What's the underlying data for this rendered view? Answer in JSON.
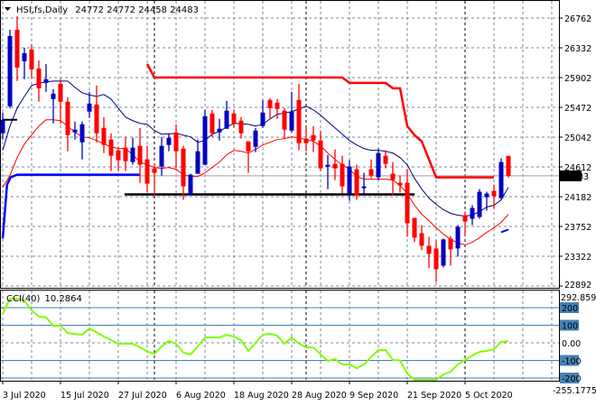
{
  "header": {
    "symbol": "HSI,fs,Daily",
    "ohlc": "24772 24772 24458 24483"
  },
  "colors": {
    "bull_candle": "#0000c0",
    "bear_candle": "#ff0000",
    "ma_fast": "#000080",
    "ma_slow": "#ff0000",
    "stop_upper": "#ff0000",
    "stop_lower": "#0000ff",
    "support_line": "#000000",
    "cci_line": "#7fff00",
    "cci_level_box": "#4682b4",
    "grid": "#778899"
  },
  "chart_data": [
    {
      "type": "candlestick",
      "title": "HSI,fs,Daily",
      "current_price": 24483,
      "current_price_label": "24483",
      "yticks": [
        26762,
        26332,
        25902,
        25472,
        25042,
        24612,
        24182,
        23752,
        23322,
        22892
      ],
      "ytick_labels": [
        "26762",
        "26332",
        "25902",
        "25472",
        "25042",
        "24612",
        "24182",
        "23752",
        "23322",
        "22892"
      ],
      "ylim": [
        22892,
        26762
      ],
      "grid": true,
      "xtick_labels": [
        {
          "bar": 0,
          "label": "3 Jul 2020"
        },
        {
          "bar": 8,
          "label": "15 Jul 2020"
        },
        {
          "bar": 16,
          "label": "27 Jul 2020"
        },
        {
          "bar": 24,
          "label": "6 Aug 2020"
        },
        {
          "bar": 32,
          "label": "18 Aug 2020"
        },
        {
          "bar": 40,
          "label": "28 Aug 2020"
        },
        {
          "bar": 48,
          "label": "9 Sep 2020"
        },
        {
          "bar": 56,
          "label": "21 Sep 2020"
        },
        {
          "bar": 64,
          "label": "5 Oct 2020"
        }
      ],
      "period_separators_bars": [
        21,
        42,
        64
      ],
      "ohlc": [
        [
          25098,
          25397,
          25007,
          25293
        ],
        [
          25488,
          26593,
          25462,
          26502
        ],
        [
          26593,
          26788,
          25852,
          26047
        ],
        [
          26138,
          26333,
          25878,
          26255
        ],
        [
          26307,
          26385,
          25891,
          26021
        ],
        [
          26034,
          26151,
          25553,
          25748
        ],
        [
          25826,
          26099,
          25696,
          25878
        ],
        [
          25592,
          25735,
          25241,
          25670
        ],
        [
          25813,
          25878,
          25241,
          25553
        ],
        [
          25553,
          25618,
          24838,
          25072
        ],
        [
          25111,
          25267,
          25007,
          25150
        ],
        [
          24968,
          25267,
          24721,
          25228
        ],
        [
          25410,
          25696,
          25319,
          25527
        ],
        [
          25514,
          25787,
          24968,
          25098
        ],
        [
          25176,
          25332,
          24812,
          24929
        ],
        [
          25007,
          25098,
          24552,
          24773
        ],
        [
          24851,
          24903,
          24552,
          24708
        ],
        [
          24890,
          25046,
          24552,
          24695
        ],
        [
          24682,
          25033,
          24643,
          24890
        ],
        [
          24916,
          25176,
          24383,
          24643
        ],
        [
          24721,
          24916,
          24253,
          24370
        ],
        [
          24591,
          24656,
          24188,
          24526
        ],
        [
          24617,
          25046,
          24487,
          24916
        ],
        [
          24929,
          25098,
          24838,
          25033
        ],
        [
          25111,
          25228,
          24591,
          24838
        ],
        [
          24877,
          24916,
          24136,
          24331
        ],
        [
          24214,
          24513,
          24201,
          24500
        ],
        [
          24513,
          25007,
          24513,
          24838
        ],
        [
          24643,
          25436,
          24643,
          25345
        ],
        [
          25384,
          25436,
          25046,
          25098
        ],
        [
          25111,
          25306,
          24994,
          25163
        ],
        [
          25163,
          25566,
          25163,
          25423
        ],
        [
          25384,
          25436,
          25176,
          25241
        ],
        [
          25280,
          25332,
          25020,
          25098
        ],
        [
          24981,
          24981,
          24526,
          24838
        ],
        [
          24903,
          25176,
          24825,
          25137
        ],
        [
          25202,
          25579,
          25176,
          25397
        ],
        [
          25579,
          25605,
          25306,
          25462
        ],
        [
          25540,
          25592,
          25306,
          25449
        ],
        [
          25423,
          25462,
          25020,
          25150
        ],
        [
          25137,
          25696,
          25111,
          25410
        ],
        [
          25579,
          25813,
          24851,
          24955
        ],
        [
          25020,
          25202,
          24838,
          24955
        ],
        [
          25072,
          25202,
          24825,
          24994
        ],
        [
          24994,
          25137,
          24552,
          24591
        ],
        [
          24617,
          24786,
          24292,
          24643
        ],
        [
          24656,
          24864,
          24422,
          24591
        ],
        [
          24656,
          24773,
          24227,
          24331
        ],
        [
          24227,
          24708,
          24123,
          24617
        ],
        [
          24578,
          24643,
          24136,
          24201
        ],
        [
          24305,
          24526,
          24214,
          24331
        ],
        [
          24578,
          24721,
          24448,
          24487
        ],
        [
          24461,
          24877,
          24422,
          24812
        ],
        [
          24773,
          24851,
          24591,
          24656
        ],
        [
          24513,
          24682,
          24201,
          24422
        ],
        [
          24383,
          24487,
          24240,
          24344
        ],
        [
          24383,
          24578,
          23603,
          23798
        ],
        [
          23876,
          23876,
          23525,
          23590
        ],
        [
          23655,
          23772,
          23408,
          23473
        ],
        [
          23473,
          23603,
          23148,
          23356
        ],
        [
          23434,
          23551,
          22953,
          23135
        ],
        [
          23187,
          23577,
          23161,
          23564
        ],
        [
          23577,
          23616,
          23187,
          23421
        ],
        [
          23434,
          23772,
          23317,
          23746
        ],
        [
          23915,
          23967,
          23616,
          23824
        ],
        [
          23863,
          24058,
          23772,
          24019
        ],
        [
          23889,
          24292,
          23863,
          24253
        ],
        [
          24175,
          24253,
          23980,
          24227
        ],
        [
          24266,
          24357,
          24006,
          24188
        ],
        [
          24162,
          24734,
          24149,
          24682
        ],
        [
          24772,
          24772,
          24458,
          24483
        ]
      ],
      "ma_fast": [
        24851,
        25202,
        25462,
        25630,
        25787,
        25820,
        25840,
        25852,
        25852,
        25852,
        25760,
        25683,
        25650,
        25631,
        25657,
        25592,
        25460,
        25332,
        25280,
        25241,
        25228,
        25137,
        25085,
        25090,
        25098,
        25070,
        25046,
        24968,
        24994,
        25085,
        25124,
        25190,
        25241,
        25235,
        25228,
        25202,
        25228,
        25306,
        25371,
        25390,
        25410,
        25449,
        25488,
        25436,
        25358,
        25267,
        25176,
        25085,
        24994,
        24929,
        24877,
        24851,
        24851,
        24838,
        24812,
        24747,
        24643,
        24448,
        24292,
        24162,
        24071,
        23993,
        23941,
        23915,
        23902,
        23915,
        23967,
        24032,
        24058,
        24136,
        24318
      ],
      "ma_slow": [
        24318,
        24487,
        24747,
        24942,
        25072,
        25202,
        25293,
        25293,
        25280,
        25202,
        25111,
        25046,
        25033,
        24994,
        24942,
        24903,
        24877,
        24877,
        24786,
        24682,
        24643,
        24604,
        24591,
        24604,
        24578,
        24500,
        24474,
        24474,
        24526,
        24604,
        24682,
        24786,
        24851,
        24838,
        24812,
        24864,
        24929,
        24968,
        25007,
        25020,
        25046,
        25033,
        25007,
        24981,
        24916,
        24812,
        24721,
        24643,
        24578,
        24474,
        24435,
        24435,
        24435,
        24435,
        24422,
        24344,
        24227,
        24058,
        23928,
        23837,
        23733,
        23642,
        23564,
        23512,
        23486,
        23525,
        23590,
        23668,
        23733,
        23811,
        23928
      ],
      "stop_upper": [
        [
          20,
          26099
        ],
        [
          21,
          25904
        ],
        [
          47,
          25904
        ],
        [
          48,
          25826
        ],
        [
          53,
          25826
        ],
        [
          54,
          25748
        ],
        [
          55,
          25748
        ],
        [
          56,
          25202
        ],
        [
          57,
          25072
        ],
        [
          58,
          24981
        ],
        [
          59,
          24721
        ],
        [
          60,
          24461
        ],
        [
          68,
          24461
        ]
      ],
      "stop_lower": [
        [
          0,
          23577
        ],
        [
          0.6,
          24357
        ],
        [
          1.1,
          24461
        ],
        [
          2,
          24500
        ],
        [
          19,
          24500
        ]
      ],
      "stop_lower_new": [
        [
          69,
          23668
        ],
        [
          70,
          23708
        ]
      ],
      "support_line": {
        "price": 24214,
        "from_bar": 17,
        "to_bar": 57
      },
      "early_level": {
        "price": 25293,
        "from_bar": 0,
        "to_bar": 2
      }
    },
    {
      "type": "line",
      "title": "CCI(40)",
      "last_value": "10.2864",
      "ylim": [
        -255.1775,
        292.8594
      ],
      "ylim_labels": [
        "292.8594",
        "-255.1775"
      ],
      "levels": [
        200,
        100,
        0,
        -100,
        -200
      ],
      "level_labels": [
        "200",
        "100",
        "0.00",
        "-100",
        "-200"
      ],
      "values": [
        165,
        251,
        250,
        240,
        185,
        149,
        145,
        97,
        97,
        56,
        50,
        46,
        82,
        60,
        36,
        15,
        -5,
        -5,
        -5,
        -26,
        -50,
        -62,
        -20,
        10,
        -5,
        -55,
        -67,
        -20,
        31,
        31,
        31,
        46,
        35,
        15,
        -46,
        0,
        46,
        51,
        41,
        -5,
        31,
        -5,
        -26,
        -26,
        -65,
        -103,
        -92,
        -123,
        -123,
        -144,
        -123,
        -80,
        -41,
        -41,
        -97,
        -100,
        -174,
        -215,
        -212,
        -220,
        -226,
        -180,
        -165,
        -123,
        -97,
        -72,
        -51,
        -46,
        -36,
        5,
        10.2864
      ]
    }
  ]
}
